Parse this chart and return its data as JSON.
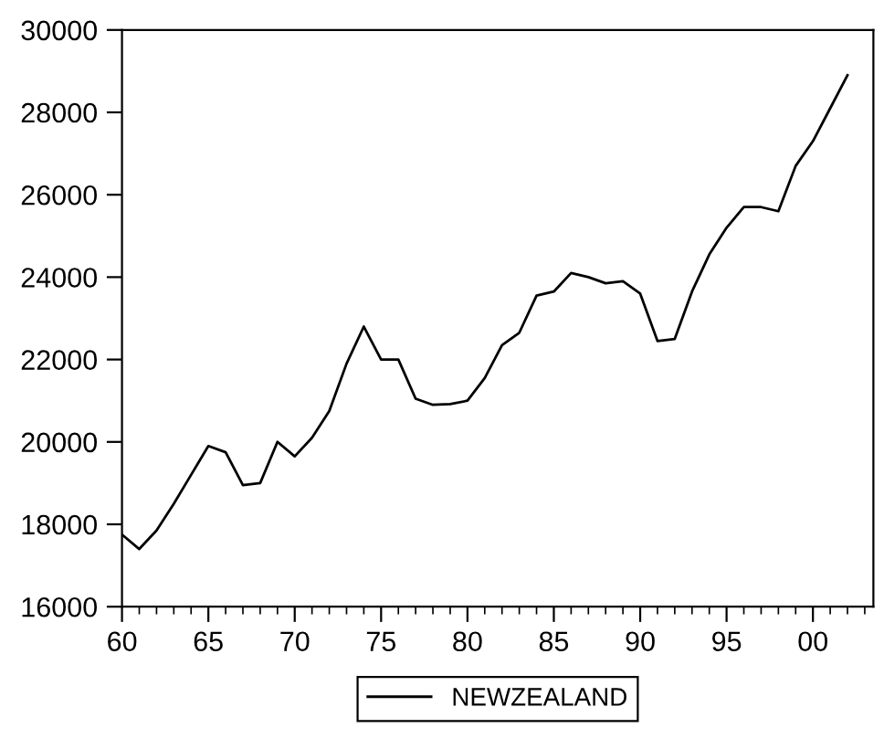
{
  "chart_data": {
    "type": "line",
    "x": [
      1960,
      1961,
      1962,
      1963,
      1964,
      1965,
      1966,
      1967,
      1968,
      1969,
      1970,
      1971,
      1972,
      1973,
      1974,
      1975,
      1976,
      1977,
      1978,
      1979,
      1980,
      1981,
      1982,
      1983,
      1984,
      1985,
      1986,
      1987,
      1988,
      1989,
      1990,
      1991,
      1992,
      1993,
      1994,
      1995,
      1996,
      1997,
      1998,
      1999,
      2000,
      2001,
      2002
    ],
    "series": [
      {
        "name": "NEWZEALAND",
        "color": "#000000",
        "values": [
          17750,
          17400,
          17850,
          18500,
          19200,
          19900,
          19750,
          18950,
          19000,
          20000,
          19650,
          20100,
          20750,
          21900,
          22800,
          22000,
          22000,
          21050,
          20900,
          20920,
          21000,
          21550,
          22350,
          22650,
          23550,
          23650,
          24100,
          24000,
          23850,
          23900,
          23600,
          22450,
          22500,
          23650,
          24550,
          25200,
          25700,
          25700,
          25600,
          26700,
          27300,
          28100,
          28900
        ]
      }
    ],
    "xlim": [
      1960,
      2003.5
    ],
    "xticks": [
      {
        "value": 1960,
        "label": "60"
      },
      {
        "value": 1961,
        "label": null
      },
      {
        "value": 1962,
        "label": null
      },
      {
        "value": 1963,
        "label": null
      },
      {
        "value": 1964,
        "label": null
      },
      {
        "value": 1965,
        "label": "65"
      },
      {
        "value": 1966,
        "label": null
      },
      {
        "value": 1967,
        "label": null
      },
      {
        "value": 1968,
        "label": null
      },
      {
        "value": 1969,
        "label": null
      },
      {
        "value": 1970,
        "label": "70"
      },
      {
        "value": 1971,
        "label": null
      },
      {
        "value": 1972,
        "label": null
      },
      {
        "value": 1973,
        "label": null
      },
      {
        "value": 1974,
        "label": null
      },
      {
        "value": 1975,
        "label": "75"
      },
      {
        "value": 1976,
        "label": null
      },
      {
        "value": 1977,
        "label": null
      },
      {
        "value": 1978,
        "label": null
      },
      {
        "value": 1979,
        "label": null
      },
      {
        "value": 1980,
        "label": "80"
      },
      {
        "value": 1981,
        "label": null
      },
      {
        "value": 1982,
        "label": null
      },
      {
        "value": 1983,
        "label": null
      },
      {
        "value": 1984,
        "label": null
      },
      {
        "value": 1985,
        "label": "85"
      },
      {
        "value": 1986,
        "label": null
      },
      {
        "value": 1987,
        "label": null
      },
      {
        "value": 1988,
        "label": null
      },
      {
        "value": 1989,
        "label": null
      },
      {
        "value": 1990,
        "label": "90"
      },
      {
        "value": 1991,
        "label": null
      },
      {
        "value": 1992,
        "label": null
      },
      {
        "value": 1993,
        "label": null
      },
      {
        "value": 1994,
        "label": null
      },
      {
        "value": 1995,
        "label": "95"
      },
      {
        "value": 1996,
        "label": null
      },
      {
        "value": 1997,
        "label": null
      },
      {
        "value": 1998,
        "label": null
      },
      {
        "value": 1999,
        "label": null
      },
      {
        "value": 2000,
        "label": "00"
      },
      {
        "value": 2001,
        "label": null
      },
      {
        "value": 2002,
        "label": null
      },
      {
        "value": 2003,
        "label": null
      }
    ],
    "ylim": [
      16000,
      30000
    ],
    "yticks": [
      16000,
      18000,
      20000,
      22000,
      24000,
      26000,
      28000,
      30000
    ],
    "legend": "bottom",
    "marker": "none",
    "line_style": "solid",
    "grid": false
  }
}
